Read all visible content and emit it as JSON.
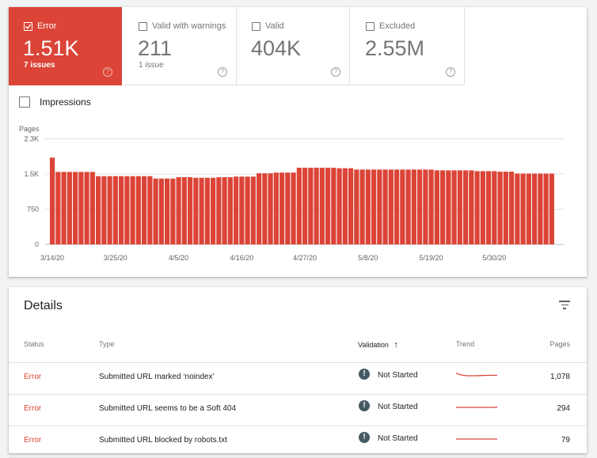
{
  "tiles": [
    {
      "label": "Error",
      "value": "1.51K",
      "sub": "7 issues",
      "checked": true
    },
    {
      "label": "Valid with warnings",
      "value": "211",
      "sub": "1 issue",
      "checked": false
    },
    {
      "label": "Valid",
      "value": "404K",
      "sub": "",
      "checked": false
    },
    {
      "label": "Excluded",
      "value": "2.55M",
      "sub": "",
      "checked": false
    }
  ],
  "help_glyph": "?",
  "impressions_label": "Impressions",
  "colors": {
    "error": "#db4437",
    "grid": "#e0e0e0"
  },
  "chart_data": {
    "type": "bar",
    "ylabel": "Pages",
    "ylim": [
      0,
      2250
    ],
    "yticks": [
      "0",
      "750",
      "1.5K",
      "2.3K"
    ],
    "ytick_values": [
      0,
      750,
      1500,
      2250
    ],
    "xticks": [
      "3/14/20",
      "3/25/20",
      "4/5/20",
      "4/16/20",
      "4/27/20",
      "5/8/20",
      "5/19/20",
      "5/30/20"
    ],
    "xtick_index": [
      0,
      11,
      22,
      33,
      44,
      55,
      66,
      77
    ],
    "grid": true,
    "values": [
      1850,
      1545,
      1545,
      1545,
      1545,
      1545,
      1545,
      1545,
      1454,
      1454,
      1454,
      1454,
      1454,
      1454,
      1454,
      1454,
      1454,
      1454,
      1404,
      1404,
      1404,
      1404,
      1432,
      1432,
      1432,
      1420,
      1420,
      1420,
      1420,
      1432,
      1432,
      1432,
      1445,
      1445,
      1445,
      1445,
      1515,
      1515,
      1515,
      1530,
      1530,
      1530,
      1530,
      1634,
      1634,
      1634,
      1634,
      1634,
      1634,
      1634,
      1623,
      1623,
      1623,
      1595,
      1595,
      1595,
      1595,
      1595,
      1595,
      1595,
      1595,
      1595,
      1595,
      1595,
      1595,
      1595,
      1595,
      1578,
      1578,
      1578,
      1578,
      1578,
      1578,
      1578,
      1561,
      1561,
      1561,
      1561,
      1550,
      1550,
      1550,
      1510,
      1510,
      1510,
      1510,
      1510,
      1510,
      1510
    ]
  },
  "details": {
    "title": "Details",
    "columns": {
      "status": "Status",
      "type": "Type",
      "validation": "Validation",
      "sort_glyph": "↑",
      "trend": "Trend",
      "pages": "Pages"
    },
    "rows": [
      {
        "status": "Error",
        "type": "Submitted URL marked ‘noindex’",
        "validation": "Not Started",
        "pages": "1,078",
        "trend": [
          3,
          1,
          0,
          0,
          0,
          0.3,
          0.5,
          0.5,
          0.5
        ]
      },
      {
        "status": "Error",
        "type": "Submitted URL seems to be a Soft 404",
        "validation": "Not Started",
        "pages": "294",
        "trend": [
          0,
          0,
          0,
          0,
          0,
          0,
          0,
          0,
          0.3
        ]
      },
      {
        "status": "Error",
        "type": "Submitted URL blocked by robots.txt",
        "validation": "Not Started",
        "pages": "79",
        "trend": [
          0,
          0,
          0,
          0,
          0,
          0,
          0,
          0,
          0
        ]
      }
    ]
  }
}
